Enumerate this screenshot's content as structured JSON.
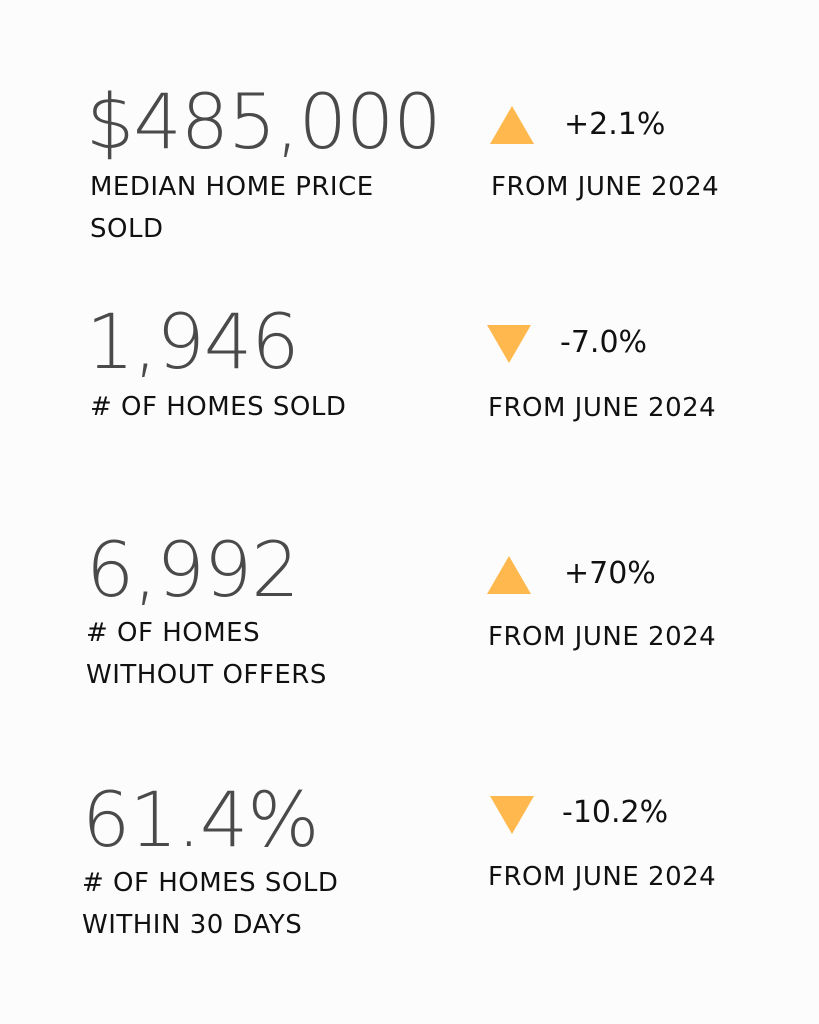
{
  "stats": [
    {
      "value": "$485,000",
      "label_lines": [
        "MEDIAN HOME PRICE",
        "SOLD"
      ],
      "direction": "up",
      "direction_icon": "triangle-up-icon",
      "change": "+2.1%",
      "change_caption": "FROM JUNE 2024"
    },
    {
      "value": "1,946",
      "label_lines": [
        "# OF HOMES SOLD"
      ],
      "direction": "down",
      "direction_icon": "triangle-down-icon",
      "change": "-7.0%",
      "change_caption": "FROM JUNE 2024"
    },
    {
      "value": "6,992",
      "label_lines": [
        "# OF HOMES",
        "WITHOUT OFFERS"
      ],
      "direction": "up",
      "direction_icon": "triangle-up-icon",
      "change": "+70%",
      "change_caption": "FROM JUNE 2024"
    },
    {
      "value": "61.4%",
      "label_lines": [
        "# OF HOMES SOLD",
        "WITHIN 30 DAYS"
      ],
      "direction": "down",
      "direction_icon": "triangle-down-icon",
      "change": "-10.2%",
      "change_caption": "FROM JUNE 2024"
    }
  ],
  "colors": {
    "accent": "#ffb84d",
    "value_text": "#4a4a4a",
    "label_text": "#111111",
    "background": "#fcfcfc"
  }
}
